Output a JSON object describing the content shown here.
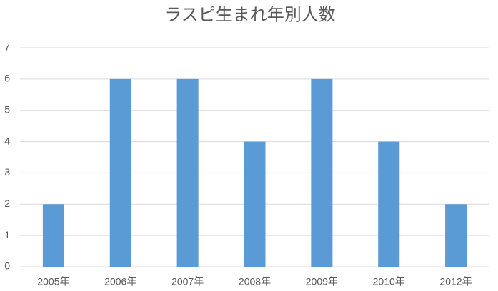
{
  "chart_data": {
    "type": "bar",
    "title": "ラスピ生まれ年別人数",
    "categories": [
      "2005年",
      "2006年",
      "2007年",
      "2008年",
      "2009年",
      "2010年",
      "2012年"
    ],
    "values": [
      2,
      6,
      6,
      4,
      6,
      4,
      2
    ],
    "color": "#5b9bd5",
    "ylim": [
      0,
      7
    ],
    "yticks": [
      0,
      1,
      2,
      3,
      4,
      5,
      6,
      7
    ],
    "grid": true
  }
}
